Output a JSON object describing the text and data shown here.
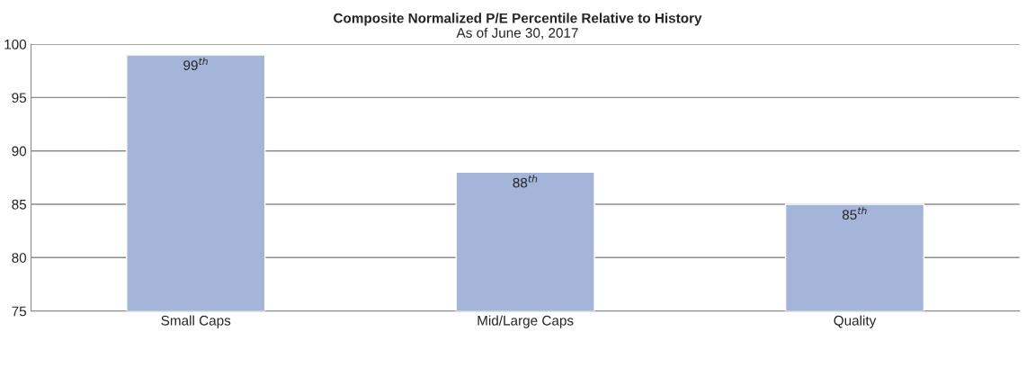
{
  "chart_data": {
    "type": "bar",
    "title": "Composite Normalized P/E Percentile Relative to History",
    "subtitle": "As of June 30, 2017",
    "categories": [
      "Small Caps",
      "Mid/Large Caps",
      "Quality"
    ],
    "values": [
      99,
      88,
      85
    ],
    "color": "#a5b5d9",
    "value_labels": [
      "99$^{th}$",
      "88$^{th}$",
      "85$^{th}$"
    ],
    "ylim": [
      75,
      100
    ],
    "yticks": [
      75,
      80,
      85,
      90,
      95,
      100
    ],
    "grid": "y",
    "legend": false
  }
}
